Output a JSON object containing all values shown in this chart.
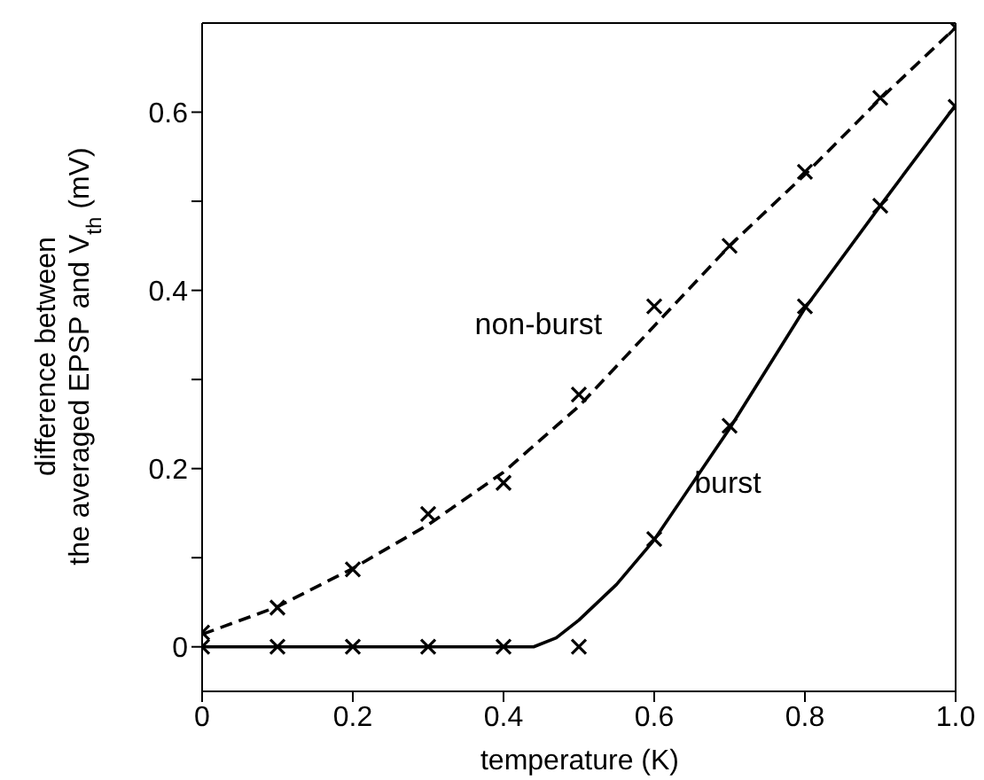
{
  "chart_data": {
    "type": "scatter",
    "xlabel": "temperature (K)",
    "ylabel": "difference between the averaged EPSP and V$_{th}$ (mV)",
    "xlim": [
      0,
      1
    ],
    "xticks": [
      0,
      0.2,
      0.4,
      0.6,
      0.8,
      {
        "value": 1,
        "label": "1.0"
      }
    ],
    "ylim": [
      -0.05,
      0.7
    ],
    "yticks": [
      0,
      {
        "value": 0.1,
        "label": null
      },
      0.2,
      {
        "value": 0.3,
        "label": null
      },
      0.4,
      {
        "value": 0.5,
        "label": null
      },
      0.6
    ],
    "legend": false,
    "marker": "cross",
    "series": [
      {
        "name": "non-burst",
        "color": "#000000",
        "x": [
          0,
          0.1,
          0.2,
          0.3,
          0.4,
          0.5,
          0.6,
          0.7,
          0.8,
          0.9,
          1.0
        ],
        "values": [
          0.016,
          0.044,
          0.087,
          0.149,
          0.184,
          0.283,
          0.382,
          0.45,
          0.533,
          0.616,
          0.695
        ]
      },
      {
        "name": "burst",
        "color": "#000000",
        "x": [
          0,
          0.1,
          0.2,
          0.3,
          0.4,
          0.5,
          0.6,
          0.7,
          0.8,
          0.9,
          1.0
        ],
        "values": [
          0,
          0,
          0,
          0,
          0,
          0,
          0.121,
          0.248,
          0.382,
          0.495,
          0.606
        ]
      },
      {
        "type": "line",
        "color": "#000000",
        "line_style": "dashed",
        "marker": "none",
        "x": [
          0,
          0.1,
          0.2,
          0.3,
          0.4,
          0.5,
          0.6,
          0.7,
          0.8,
          0.9,
          1.0
        ],
        "values": [
          0.014,
          0.045,
          0.088,
          0.137,
          0.196,
          0.27,
          0.36,
          0.45,
          0.53,
          0.615,
          0.695
        ]
      },
      {
        "type": "line",
        "color": "#000000",
        "line_style": "solid",
        "marker": "none",
        "x": [
          0,
          0.44,
          0.47,
          0.5,
          0.55,
          0.6,
          0.7,
          0.8,
          0.9,
          1.0
        ],
        "values": [
          0,
          0,
          0.01,
          0.03,
          0.07,
          0.12,
          0.245,
          0.38,
          0.495,
          0.608
        ]
      }
    ]
  }
}
